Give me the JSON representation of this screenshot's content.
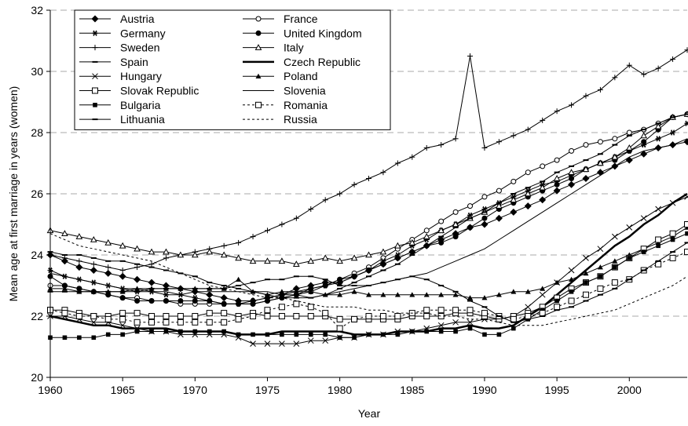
{
  "chart_data": {
    "type": "line",
    "ylabel": "Mean age at first marriage in years (women)",
    "xlabel": "Year",
    "xlim": [
      1960,
      2004
    ],
    "ylim": [
      20,
      32
    ],
    "xticks": [
      1960,
      1965,
      1970,
      1975,
      1980,
      1985,
      1990,
      1995,
      2000
    ],
    "yticks": [
      20,
      22,
      24,
      26,
      28,
      30,
      32
    ],
    "grid": true,
    "legend": "upper left",
    "x": [
      1960,
      1961,
      1962,
      1963,
      1964,
      1965,
      1966,
      1967,
      1968,
      1969,
      1970,
      1971,
      1972,
      1973,
      1974,
      1975,
      1976,
      1977,
      1978,
      1979,
      1980,
      1981,
      1982,
      1983,
      1984,
      1985,
      1986,
      1987,
      1988,
      1989,
      1990,
      1991,
      1992,
      1993,
      1994,
      1995,
      1996,
      1997,
      1998,
      1999,
      2000,
      2001,
      2002,
      2003,
      2004
    ],
    "series": [
      {
        "name": "Austria",
        "color": "#000000",
        "marker": "diamond",
        "dash": "solid",
        "width": 1,
        "values": [
          24.0,
          23.8,
          23.6,
          23.5,
          23.4,
          23.3,
          23.2,
          23.1,
          23.0,
          22.9,
          22.8,
          22.7,
          22.6,
          22.5,
          22.5,
          22.6,
          22.7,
          22.9,
          23.0,
          23.1,
          23.1,
          23.3,
          23.5,
          23.7,
          23.9,
          24.1,
          24.3,
          24.5,
          24.7,
          24.9,
          25.0,
          25.2,
          25.4,
          25.6,
          25.8,
          26.1,
          26.3,
          26.5,
          26.7,
          26.9,
          27.1,
          27.3,
          27.5,
          27.6,
          27.7
        ]
      },
      {
        "name": "France",
        "color": "#000000",
        "marker": "circle-open",
        "dash": "solid",
        "width": 1,
        "values": [
          23.0,
          23.0,
          22.9,
          22.8,
          22.7,
          22.6,
          22.6,
          22.5,
          22.5,
          22.4,
          22.4,
          22.4,
          22.4,
          22.4,
          22.4,
          22.5,
          22.6,
          22.7,
          22.8,
          23.0,
          23.2,
          23.4,
          23.6,
          23.9,
          24.2,
          24.5,
          24.8,
          25.1,
          25.4,
          25.6,
          25.9,
          26.1,
          26.4,
          26.7,
          26.9,
          27.1,
          27.4,
          27.6,
          27.7,
          27.8,
          28.0,
          28.1,
          28.3,
          28.5,
          28.6
        ]
      },
      {
        "name": "Germany",
        "color": "#000000",
        "marker": "asterisk",
        "dash": "solid",
        "width": 1,
        "values": [
          23.5,
          23.3,
          23.2,
          23.1,
          23.0,
          22.9,
          22.8,
          22.8,
          22.7,
          22.7,
          22.6,
          22.5,
          22.4,
          22.4,
          22.5,
          22.6,
          22.7,
          22.8,
          22.9,
          23.0,
          23.1,
          23.3,
          23.5,
          23.8,
          24.0,
          24.3,
          24.5,
          24.8,
          25.0,
          25.3,
          25.5,
          25.7,
          25.9,
          26.1,
          26.3,
          26.4,
          26.6,
          26.8,
          27.0,
          27.2,
          27.4,
          27.6,
          27.8,
          28.0,
          28.3
        ]
      },
      {
        "name": "United Kingdom",
        "color": "#000000",
        "marker": "circle",
        "dash": "solid",
        "width": 1,
        "values": [
          23.3,
          23.0,
          22.9,
          22.8,
          22.7,
          22.6,
          22.5,
          22.5,
          22.5,
          22.5,
          22.5,
          22.5,
          22.4,
          22.4,
          22.4,
          22.5,
          22.6,
          22.7,
          22.9,
          23.0,
          23.2,
          23.3,
          23.5,
          23.7,
          23.9,
          24.1,
          24.3,
          24.4,
          24.6,
          24.9,
          25.2,
          25.5,
          25.7,
          25.9,
          26.1,
          26.3,
          26.5,
          26.8,
          27.0,
          27.1,
          27.4,
          27.7,
          28.1,
          28.5,
          28.6
        ]
      },
      {
        "name": "Sweden",
        "color": "#000000",
        "marker": "plus",
        "dash": "solid",
        "width": 1,
        "values": [
          24.0,
          23.9,
          23.8,
          23.7,
          23.6,
          23.5,
          23.6,
          23.7,
          23.9,
          24.0,
          24.1,
          24.2,
          24.3,
          24.4,
          24.6,
          24.8,
          25.0,
          25.2,
          25.5,
          25.8,
          26.0,
          26.3,
          26.5,
          26.7,
          27.0,
          27.2,
          27.5,
          27.6,
          27.8,
          30.5,
          27.5,
          27.7,
          27.9,
          28.1,
          28.4,
          28.7,
          28.9,
          29.2,
          29.4,
          29.8,
          30.2,
          29.9,
          30.1,
          30.4,
          30.7
        ]
      },
      {
        "name": "Italy",
        "color": "#000000",
        "marker": "triangle-open",
        "dash": "solid",
        "width": 1,
        "values": [
          24.8,
          24.7,
          24.6,
          24.5,
          24.4,
          24.3,
          24.2,
          24.1,
          24.1,
          24.0,
          24.0,
          24.1,
          24.0,
          23.9,
          23.8,
          23.8,
          23.8,
          23.7,
          23.8,
          23.9,
          23.8,
          23.9,
          24.0,
          24.1,
          24.3,
          24.4,
          24.6,
          24.8,
          25.0,
          25.2,
          25.4,
          25.6,
          25.8,
          26.0,
          26.2,
          26.5,
          26.7,
          26.8,
          27.0,
          27.2,
          27.5,
          27.9,
          28.2,
          28.5,
          28.6
        ]
      },
      {
        "name": "Spain",
        "color": "#000000",
        "marker": "dash",
        "dash": "solid",
        "width": 1,
        "values": [
          24.1,
          24.0,
          24.0,
          23.9,
          23.8,
          23.8,
          23.7,
          23.6,
          23.5,
          23.4,
          23.3,
          23.1,
          23.0,
          22.9,
          22.8,
          22.7,
          22.6,
          22.6,
          22.6,
          22.7,
          22.9,
          23.1,
          23.3,
          23.5,
          23.7,
          24.0,
          24.3,
          24.6,
          24.9,
          25.2,
          25.4,
          25.7,
          26.0,
          26.2,
          26.4,
          26.7,
          26.9,
          27.1,
          27.3,
          27.6,
          27.9,
          28.1,
          28.3,
          28.5,
          28.6
        ]
      },
      {
        "name": "Czech Republic",
        "color": "#000000",
        "marker": "none",
        "dash": "solid",
        "width": 2.5,
        "values": [
          22.0,
          21.9,
          21.8,
          21.7,
          21.7,
          21.6,
          21.6,
          21.6,
          21.6,
          21.5,
          21.5,
          21.5,
          21.5,
          21.4,
          21.4,
          21.4,
          21.5,
          21.5,
          21.5,
          21.5,
          21.5,
          21.4,
          21.4,
          21.4,
          21.5,
          21.5,
          21.5,
          21.6,
          21.6,
          21.7,
          21.6,
          21.6,
          21.7,
          22.0,
          22.3,
          22.7,
          23.1,
          23.5,
          23.9,
          24.3,
          24.6,
          25.0,
          25.3,
          25.7,
          26.0
        ]
      },
      {
        "name": "Hungary",
        "color": "#000000",
        "marker": "cross",
        "dash": "solid",
        "width": 1,
        "values": [
          22.0,
          22.0,
          21.9,
          21.8,
          21.8,
          21.7,
          21.6,
          21.5,
          21.5,
          21.4,
          21.4,
          21.4,
          21.4,
          21.3,
          21.1,
          21.1,
          21.1,
          21.1,
          21.2,
          21.2,
          21.3,
          21.3,
          21.4,
          21.4,
          21.5,
          21.5,
          21.6,
          21.7,
          21.8,
          21.8,
          21.9,
          21.9,
          22.0,
          22.3,
          22.7,
          23.1,
          23.5,
          23.9,
          24.2,
          24.6,
          24.9,
          25.2,
          25.5,
          25.7,
          25.9
        ]
      },
      {
        "name": "Poland",
        "color": "#000000",
        "marker": "triangle",
        "dash": "solid",
        "width": 1,
        "values": [
          22.9,
          22.9,
          22.8,
          22.8,
          22.8,
          22.8,
          22.9,
          22.9,
          22.9,
          22.9,
          22.9,
          22.9,
          22.9,
          23.2,
          22.8,
          22.7,
          22.8,
          22.8,
          22.8,
          22.7,
          22.7,
          22.8,
          22.7,
          22.7,
          22.7,
          22.7,
          22.7,
          22.7,
          22.7,
          22.6,
          22.6,
          22.7,
          22.8,
          22.8,
          22.9,
          23.1,
          23.2,
          23.4,
          23.6,
          23.8,
          24.0,
          24.2,
          24.4,
          24.6,
          24.9
        ]
      },
      {
        "name": "Slovak Republic",
        "color": "#000000",
        "marker": "square-open",
        "dash": "solid",
        "width": 1,
        "values": [
          22.2,
          22.2,
          22.1,
          22.0,
          22.0,
          22.1,
          22.1,
          22.0,
          22.0,
          22.0,
          22.0,
          22.1,
          22.1,
          22.0,
          22.1,
          22.0,
          22.0,
          22.0,
          22.0,
          22.0,
          21.9,
          21.9,
          21.9,
          21.9,
          21.9,
          22.0,
          22.0,
          22.0,
          22.1,
          22.1,
          22.0,
          21.9,
          22.0,
          22.1,
          22.3,
          22.6,
          22.9,
          23.1,
          23.3,
          23.6,
          23.9,
          24.2,
          24.5,
          24.7,
          25.0
        ]
      },
      {
        "name": "Slovenia",
        "color": "#000000",
        "marker": "none",
        "dash": "solid",
        "width": 1,
        "values": [
          23.4,
          23.3,
          23.2,
          23.1,
          23.0,
          22.9,
          22.9,
          22.8,
          22.8,
          22.7,
          22.8,
          22.8,
          22.8,
          22.8,
          22.8,
          22.8,
          22.7,
          22.7,
          22.6,
          22.7,
          22.8,
          22.9,
          23.0,
          23.1,
          23.2,
          23.3,
          23.4,
          23.6,
          23.8,
          24.0,
          24.2,
          24.5,
          24.8,
          25.1,
          25.4,
          25.7,
          26.0,
          26.3,
          26.6,
          26.9,
          27.2,
          27.4,
          27.5,
          27.6,
          27.8
        ]
      },
      {
        "name": "Bulgaria",
        "color": "#000000",
        "marker": "square",
        "dash": "solid",
        "width": 1,
        "values": [
          21.3,
          21.3,
          21.3,
          21.3,
          21.4,
          21.4,
          21.5,
          21.5,
          21.5,
          21.5,
          21.5,
          21.5,
          21.5,
          21.4,
          21.4,
          21.4,
          21.4,
          21.4,
          21.4,
          21.4,
          21.3,
          21.3,
          21.4,
          21.4,
          21.4,
          21.5,
          21.5,
          21.5,
          21.5,
          21.6,
          21.4,
          21.4,
          21.6,
          21.9,
          22.2,
          22.5,
          22.8,
          23.1,
          23.3,
          23.6,
          23.9,
          24.1,
          24.3,
          24.5,
          24.7
        ]
      },
      {
        "name": "Romania",
        "color": "#000000",
        "marker": "square-open",
        "dash": "dotted",
        "width": 1,
        "values": [
          22.2,
          22.1,
          22.0,
          22.0,
          21.9,
          21.9,
          21.8,
          21.8,
          21.8,
          21.8,
          21.8,
          21.8,
          21.8,
          21.9,
          22.0,
          22.2,
          22.3,
          22.4,
          22.3,
          22.1,
          21.6,
          21.9,
          22.0,
          22.0,
          22.0,
          22.1,
          22.2,
          22.2,
          22.2,
          22.2,
          22.1,
          22.0,
          21.9,
          22.0,
          22.1,
          22.3,
          22.5,
          22.7,
          22.9,
          23.1,
          23.2,
          23.5,
          23.7,
          23.9,
          24.1
        ]
      },
      {
        "name": "Lithuania",
        "color": "#000000",
        "marker": "dash",
        "dash": "solid",
        "width": 1,
        "values": [
          22.8,
          22.8,
          22.8,
          22.8,
          22.8,
          22.8,
          22.8,
          22.9,
          22.9,
          22.9,
          22.9,
          22.9,
          22.9,
          23.0,
          23.1,
          23.2,
          23.2,
          23.3,
          23.3,
          23.2,
          23.0,
          23.0,
          23.0,
          23.1,
          23.2,
          23.3,
          23.2,
          23.0,
          22.8,
          22.5,
          22.3,
          22.0,
          21.8,
          21.9,
          22.0,
          22.2,
          22.3,
          22.5,
          22.7,
          22.9,
          23.2,
          23.5,
          23.8,
          24.1,
          24.4
        ]
      },
      {
        "name": "Russia",
        "color": "#000000",
        "marker": "none",
        "dash": "dotted",
        "width": 1,
        "values": [
          24.7,
          24.5,
          24.3,
          24.2,
          24.1,
          24.0,
          23.9,
          23.8,
          23.6,
          23.4,
          23.2,
          23.0,
          22.9,
          22.8,
          22.7,
          22.6,
          22.6,
          22.5,
          22.4,
          22.3,
          22.3,
          22.3,
          22.2,
          22.2,
          22.1,
          22.1,
          22.1,
          22.0,
          22.0,
          21.9,
          21.9,
          21.8,
          21.7,
          21.7,
          21.7,
          21.8,
          21.9,
          22.0,
          22.1,
          22.2,
          22.4,
          22.6,
          22.8,
          23.0,
          23.3
        ]
      }
    ]
  }
}
